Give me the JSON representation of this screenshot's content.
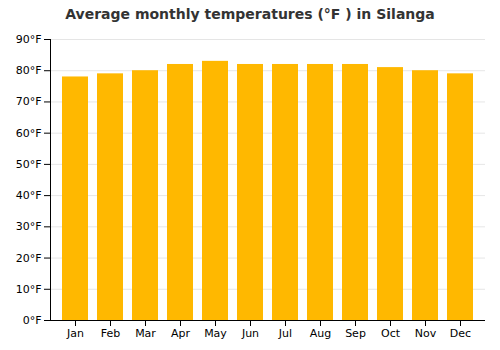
{
  "chart_data": {
    "type": "bar",
    "title": "Average monthly temperatures (°F ) in Silanga",
    "categories": [
      "Jan",
      "Feb",
      "Mar",
      "Apr",
      "May",
      "Jun",
      "Jul",
      "Aug",
      "Sep",
      "Oct",
      "Nov",
      "Dec"
    ],
    "values": [
      78,
      79,
      80,
      82,
      83,
      82,
      82,
      82,
      82,
      81,
      80,
      79
    ],
    "color": "#FFB800",
    "ylim": [
      0,
      90
    ],
    "yticks": [
      {
        "value": 0,
        "label": "0°F"
      },
      {
        "value": 10,
        "label": "10°F"
      },
      {
        "value": 20,
        "label": "20°F"
      },
      {
        "value": 30,
        "label": "30°F"
      },
      {
        "value": 40,
        "label": "40°F"
      },
      {
        "value": 50,
        "label": "50°F"
      },
      {
        "value": 60,
        "label": "60°F"
      },
      {
        "value": 70,
        "label": "70°F"
      },
      {
        "value": 80,
        "label": "80°F"
      },
      {
        "value": 90,
        "label": "90°F"
      }
    ],
    "grid": true
  }
}
